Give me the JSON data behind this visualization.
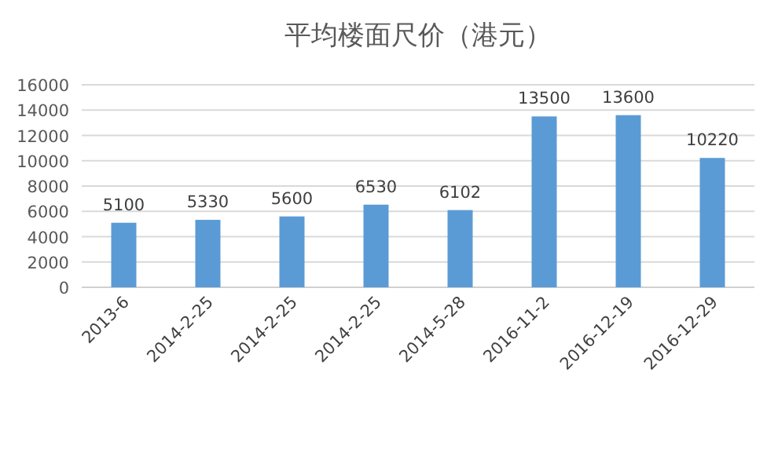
{
  "chart_data": {
    "type": "bar",
    "title": "平均楼面尺价（港元）",
    "categories": [
      "2013-6",
      "2014-2-25",
      "2014-2-25",
      "2014-2-25",
      "2014-5-28",
      "2016-11-2",
      "2016-12-19",
      "2016-12-29"
    ],
    "values": [
      5100,
      5330,
      5600,
      6530,
      6102,
      13500,
      13600,
      10220
    ],
    "color": "#5b9bd5",
    "ylim": [
      0,
      16000
    ],
    "yticks": [
      0,
      2000,
      4000,
      6000,
      8000,
      10000,
      12000,
      14000,
      16000
    ],
    "grid": "y",
    "data_labels": true
  }
}
